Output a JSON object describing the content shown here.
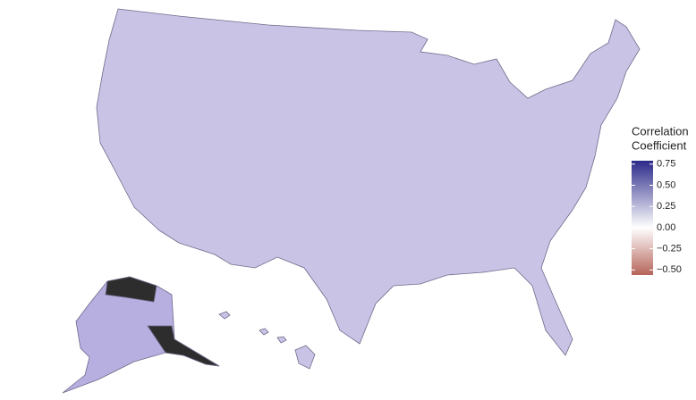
{
  "legend": {
    "title_lines": [
      "Correlation",
      "Coefficient"
    ],
    "clim": [
      -0.56,
      0.79
    ],
    "color_stops": [
      {
        "value": -0.56,
        "color": "#b5645a"
      },
      {
        "value": 0,
        "color": "#ffffff"
      },
      {
        "value": 0.79,
        "color": "#2c2a8a"
      }
    ],
    "ticks": [
      0.75,
      {
        "value": 0.5,
        "label": "0.50"
      },
      0.25,
      {
        "value": 0,
        "label": "0.00"
      },
      {
        "value": -0.25,
        "label": "−0.25"
      },
      {
        "value": -0.5,
        "label": "−0.50"
      }
    ]
  }
}
